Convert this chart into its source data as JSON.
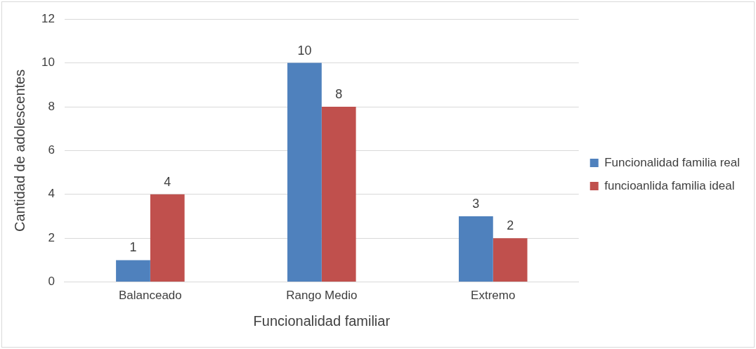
{
  "chart_data": {
    "type": "bar",
    "xlabel": "Funcionalidad familiar",
    "ylabel": "Cantidad de adolescentes",
    "categories": [
      "Balanceado",
      "Rango Medio",
      "Extremo"
    ],
    "series": [
      {
        "name": "Funcionalidad familia real",
        "color": "#4f81bd",
        "values": [
          1,
          10,
          3
        ]
      },
      {
        "name": "funcioanlida familia ideal",
        "color": "#c0504d",
        "values": [
          4,
          8,
          2
        ]
      }
    ],
    "ylim": [
      0,
      12
    ],
    "yticks": [
      0,
      2,
      4,
      6,
      8,
      10,
      12
    ],
    "grid": "y",
    "legend": "right",
    "data_labels": true
  }
}
